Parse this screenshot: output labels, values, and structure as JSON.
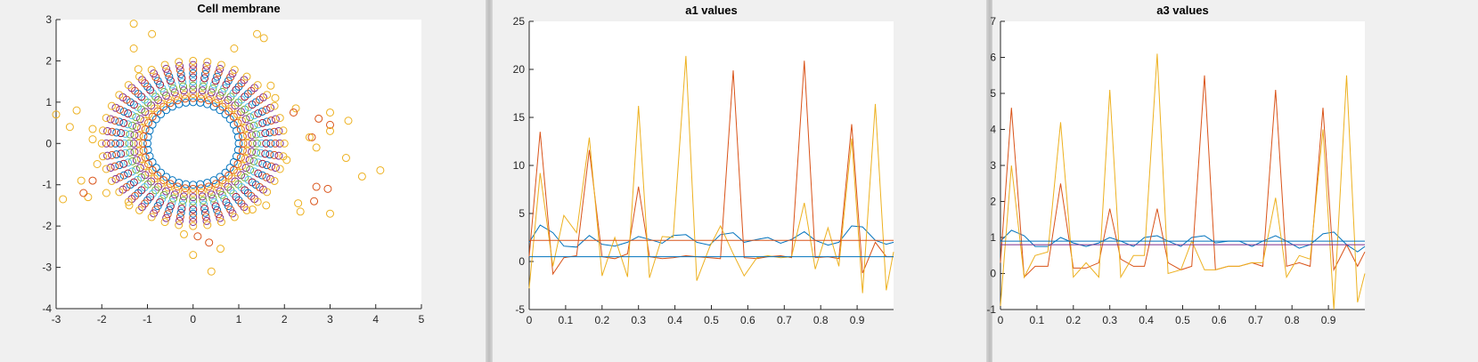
{
  "colors": {
    "blue": "#0072BD",
    "red": "#D95319",
    "yellow": "#EDB120",
    "purple": "#7E2F8E",
    "green": "#77AC30",
    "cyan": "#4DBEEE",
    "darkred": "#A2142F"
  },
  "chart_data": [
    {
      "type": "scatter",
      "title": "Cell membrane",
      "xlim": [
        -3,
        5
      ],
      "ylim": [
        -4,
        3
      ],
      "xticks": [
        "-3",
        "-2",
        "-1",
        "0",
        "1",
        "2",
        "3",
        "4",
        "5"
      ],
      "yticks": [
        "-4",
        "-3",
        "-2",
        "-1",
        "0",
        "1",
        "2",
        "3"
      ],
      "grid": false,
      "marker": "open-circle",
      "rings": [
        {
          "radius": 1.0,
          "color": "blue",
          "points": 40
        },
        {
          "radius": 1.1,
          "color": "red",
          "points": 40
        },
        {
          "radius": 1.2,
          "color": "yellow",
          "points": 40
        },
        {
          "radius": 1.3,
          "color": "purple",
          "points": 40
        },
        {
          "radius": 1.4,
          "color": "green",
          "points": 40
        },
        {
          "radius": 1.5,
          "color": "cyan",
          "points": 40
        },
        {
          "radius": 1.6,
          "color": "darkred",
          "points": 40
        },
        {
          "radius": 1.7,
          "color": "blue",
          "points": 40
        },
        {
          "radius": 1.8,
          "color": "red",
          "points": 40
        },
        {
          "radius": 1.9,
          "color": "purple",
          "points": 40
        },
        {
          "radius": 2.0,
          "color": "yellow",
          "points": 40
        }
      ],
      "scatter_points": [
        {
          "x": -1.3,
          "y": 2.9,
          "color": "yellow"
        },
        {
          "x": -0.9,
          "y": 2.65,
          "color": "yellow"
        },
        {
          "x": -1.3,
          "y": 2.3,
          "color": "yellow"
        },
        {
          "x": 1.4,
          "y": 2.65,
          "color": "yellow"
        },
        {
          "x": 1.55,
          "y": 2.55,
          "color": "yellow"
        },
        {
          "x": 0.9,
          "y": 2.3,
          "color": "yellow"
        },
        {
          "x": -3.0,
          "y": 0.7,
          "color": "yellow"
        },
        {
          "x": -2.55,
          "y": 0.8,
          "color": "yellow"
        },
        {
          "x": -2.7,
          "y": 0.4,
          "color": "yellow"
        },
        {
          "x": -2.2,
          "y": 0.35,
          "color": "yellow"
        },
        {
          "x": -2.2,
          "y": 0.1,
          "color": "yellow"
        },
        {
          "x": -2.85,
          "y": -1.35,
          "color": "yellow"
        },
        {
          "x": -2.45,
          "y": -0.9,
          "color": "yellow"
        },
        {
          "x": -2.3,
          "y": -1.3,
          "color": "yellow"
        },
        {
          "x": -2.4,
          "y": -1.2,
          "color": "red"
        },
        {
          "x": -2.2,
          "y": -0.9,
          "color": "red"
        },
        {
          "x": 2.25,
          "y": 0.85,
          "color": "yellow"
        },
        {
          "x": 2.2,
          "y": 0.75,
          "color": "red"
        },
        {
          "x": 2.75,
          "y": 0.6,
          "color": "red"
        },
        {
          "x": 3.0,
          "y": 0.75,
          "color": "yellow"
        },
        {
          "x": 3.4,
          "y": 0.55,
          "color": "yellow"
        },
        {
          "x": 3.0,
          "y": 0.45,
          "color": "red"
        },
        {
          "x": 3.0,
          "y": 0.3,
          "color": "yellow"
        },
        {
          "x": 2.6,
          "y": 0.15,
          "color": "red"
        },
        {
          "x": 2.55,
          "y": 0.15,
          "color": "yellow"
        },
        {
          "x": 2.7,
          "y": -0.1,
          "color": "yellow"
        },
        {
          "x": 3.35,
          "y": -0.35,
          "color": "yellow"
        },
        {
          "x": 4.1,
          "y": -0.65,
          "color": "yellow"
        },
        {
          "x": 3.7,
          "y": -0.8,
          "color": "yellow"
        },
        {
          "x": 2.95,
          "y": -1.1,
          "color": "red"
        },
        {
          "x": 2.7,
          "y": -1.05,
          "color": "red"
        },
        {
          "x": 2.65,
          "y": -1.4,
          "color": "red"
        },
        {
          "x": 2.3,
          "y": -1.45,
          "color": "yellow"
        },
        {
          "x": 2.35,
          "y": -1.65,
          "color": "yellow"
        },
        {
          "x": 3.0,
          "y": -1.7,
          "color": "yellow"
        },
        {
          "x": 0.35,
          "y": -2.4,
          "color": "red"
        },
        {
          "x": 0.1,
          "y": -2.25,
          "color": "red"
        },
        {
          "x": 0.6,
          "y": -2.55,
          "color": "yellow"
        },
        {
          "x": 0.0,
          "y": -2.7,
          "color": "yellow"
        },
        {
          "x": 0.4,
          "y": -3.1,
          "color": "yellow"
        },
        {
          "x": -0.2,
          "y": -2.2,
          "color": "yellow"
        },
        {
          "x": 1.7,
          "y": 1.4,
          "color": "yellow"
        },
        {
          "x": 1.8,
          "y": 1.1,
          "color": "yellow"
        },
        {
          "x": 1.3,
          "y": -1.6,
          "color": "yellow"
        },
        {
          "x": 1.6,
          "y": -1.5,
          "color": "yellow"
        },
        {
          "x": -1.9,
          "y": -1.2,
          "color": "yellow"
        },
        {
          "x": -1.4,
          "y": -1.5,
          "color": "yellow"
        },
        {
          "x": -1.2,
          "y": 1.8,
          "color": "yellow"
        },
        {
          "x": -2.1,
          "y": -0.5,
          "color": "yellow"
        },
        {
          "x": 2.05,
          "y": -0.4,
          "color": "yellow"
        }
      ]
    },
    {
      "type": "line",
      "title": "a1 values",
      "xlim": [
        0,
        1
      ],
      "ylim": [
        -5,
        25
      ],
      "xticks": [
        "0",
        "0.1",
        "0.2",
        "0.3",
        "0.4",
        "0.5",
        "0.6",
        "0.7",
        "0.8",
        "0.9"
      ],
      "yticks": [
        "-5",
        "0",
        "5",
        "10",
        "15",
        "20",
        "25"
      ],
      "grid": false,
      "x": [
        0,
        0.03,
        0.065,
        0.095,
        0.13,
        0.165,
        0.2,
        0.235,
        0.27,
        0.3,
        0.33,
        0.365,
        0.395,
        0.43,
        0.46,
        0.495,
        0.525,
        0.56,
        0.59,
        0.625,
        0.655,
        0.69,
        0.72,
        0.755,
        0.785,
        0.82,
        0.85,
        0.885,
        0.915,
        0.95,
        0.98,
        1.0
      ],
      "series": [
        {
          "color": "blue",
          "values": [
            2.0,
            3.8,
            3.0,
            1.6,
            1.5,
            2.7,
            1.8,
            1.6,
            2.0,
            2.6,
            2.3,
            1.9,
            2.7,
            2.8,
            2.0,
            1.7,
            2.8,
            3.0,
            2.0,
            2.3,
            2.5,
            1.9,
            2.3,
            3.1,
            2.2,
            1.7,
            2.0,
            3.7,
            3.6,
            2.2,
            1.8,
            2.0
          ]
        },
        {
          "color": "red",
          "values": [
            0.5,
            13.5,
            -1.3,
            0.4,
            0.6,
            11.6,
            0.5,
            0.3,
            0.8,
            7.8,
            0.5,
            0.3,
            0.4,
            0.6,
            0.5,
            0.4,
            0.3,
            19.9,
            0.4,
            0.3,
            0.5,
            0.6,
            0.4,
            20.9,
            0.4,
            0.5,
            0.3,
            14.3,
            -1.2,
            2.0,
            0.5,
            0.5
          ]
        },
        {
          "color": "yellow",
          "values": [
            -2.8,
            9.2,
            -0.5,
            4.8,
            3.0,
            12.9,
            -1.5,
            2.5,
            -1.6,
            16.2,
            -1.7,
            2.6,
            2.5,
            21.4,
            -2.0,
            1.5,
            3.7,
            0.8,
            -1.5,
            0.4,
            0.6,
            0.4,
            0.5,
            6.1,
            -0.8,
            3.5,
            -0.5,
            12.8,
            -3.3,
            16.4,
            -3.0,
            1.0
          ]
        },
        {
          "color": "blue",
          "values": [
            0.5,
            0.5,
            0.5,
            0.5,
            0.5,
            0.5,
            0.5,
            0.5,
            0.5,
            0.5,
            0.5,
            0.5,
            0.5,
            0.5,
            0.5,
            0.5,
            0.5,
            0.5,
            0.5,
            0.5,
            0.5,
            0.5,
            0.5,
            0.5,
            0.5,
            0.5,
            0.5,
            0.5,
            0.5,
            0.5,
            0.5,
            0.5
          ]
        },
        {
          "color": "red",
          "values": [
            2.2,
            2.2,
            2.2,
            2.2,
            2.2,
            2.2,
            2.2,
            2.2,
            2.2,
            2.2,
            2.2,
            2.2,
            2.2,
            2.2,
            2.2,
            2.2,
            2.2,
            2.2,
            2.2,
            2.2,
            2.2,
            2.2,
            2.2,
            2.2,
            2.2,
            2.2,
            2.2,
            2.2,
            2.2,
            2.2,
            2.2,
            2.2
          ]
        }
      ]
    },
    {
      "type": "line",
      "title": "a3 values",
      "xlim": [
        0,
        1
      ],
      "ylim": [
        -1,
        7
      ],
      "xticks": [
        "0",
        "0.1",
        "0.2",
        "0.3",
        "0.4",
        "0.5",
        "0.6",
        "0.7",
        "0.8",
        "0.9"
      ],
      "yticks": [
        "-1",
        "0",
        "1",
        "2",
        "3",
        "4",
        "5",
        "6",
        "7"
      ],
      "grid": false,
      "x": [
        0,
        0.03,
        0.065,
        0.095,
        0.13,
        0.165,
        0.2,
        0.235,
        0.27,
        0.3,
        0.33,
        0.365,
        0.395,
        0.43,
        0.46,
        0.495,
        0.525,
        0.56,
        0.59,
        0.625,
        0.655,
        0.69,
        0.72,
        0.755,
        0.785,
        0.82,
        0.85,
        0.885,
        0.915,
        0.95,
        0.98,
        1.0
      ],
      "series": [
        {
          "color": "blue",
          "values": [
            0.9,
            1.2,
            1.05,
            0.75,
            0.75,
            1.0,
            0.85,
            0.75,
            0.85,
            1.0,
            0.9,
            0.75,
            1.0,
            1.05,
            0.9,
            0.75,
            1.0,
            1.05,
            0.85,
            0.9,
            0.9,
            0.75,
            0.9,
            1.05,
            0.9,
            0.7,
            0.8,
            1.1,
            1.15,
            0.8,
            0.6,
            0.75
          ]
        },
        {
          "color": "red",
          "values": [
            0.3,
            4.6,
            -0.1,
            0.2,
            0.2,
            2.5,
            0.15,
            0.15,
            0.3,
            1.8,
            0.4,
            0.2,
            0.2,
            1.8,
            0.3,
            0.1,
            0.2,
            5.5,
            0.1,
            0.2,
            0.2,
            0.3,
            0.2,
            5.1,
            0.2,
            0.3,
            0.2,
            4.6,
            0.1,
            0.8,
            0.2,
            0.6
          ]
        },
        {
          "color": "yellow",
          "values": [
            -0.9,
            3.0,
            -0.1,
            0.5,
            0.6,
            4.2,
            -0.1,
            0.3,
            -0.1,
            5.1,
            -0.1,
            0.5,
            0.5,
            6.1,
            0.0,
            0.1,
            0.9,
            0.1,
            0.1,
            0.2,
            0.2,
            0.3,
            0.3,
            2.1,
            -0.1,
            0.5,
            0.4,
            4.0,
            -1.0,
            5.5,
            -0.8,
            0.0
          ]
        },
        {
          "color": "blue",
          "values": [
            0.9,
            0.9,
            0.9,
            0.9,
            0.9,
            0.9,
            0.9,
            0.9,
            0.9,
            0.9,
            0.9,
            0.9,
            0.9,
            0.9,
            0.9,
            0.9,
            0.9,
            0.9,
            0.9,
            0.9,
            0.9,
            0.9,
            0.9,
            0.9,
            0.9,
            0.9,
            0.9,
            0.9,
            0.9,
            0.9,
            0.9,
            0.9
          ]
        },
        {
          "color": "purple",
          "values": [
            0.8,
            0.8,
            0.8,
            0.8,
            0.8,
            0.8,
            0.8,
            0.8,
            0.8,
            0.8,
            0.8,
            0.8,
            0.8,
            0.8,
            0.8,
            0.8,
            0.8,
            0.8,
            0.8,
            0.8,
            0.8,
            0.8,
            0.8,
            0.8,
            0.8,
            0.8,
            0.8,
            0.8,
            0.8,
            0.8,
            0.8,
            0.8
          ]
        }
      ]
    }
  ]
}
